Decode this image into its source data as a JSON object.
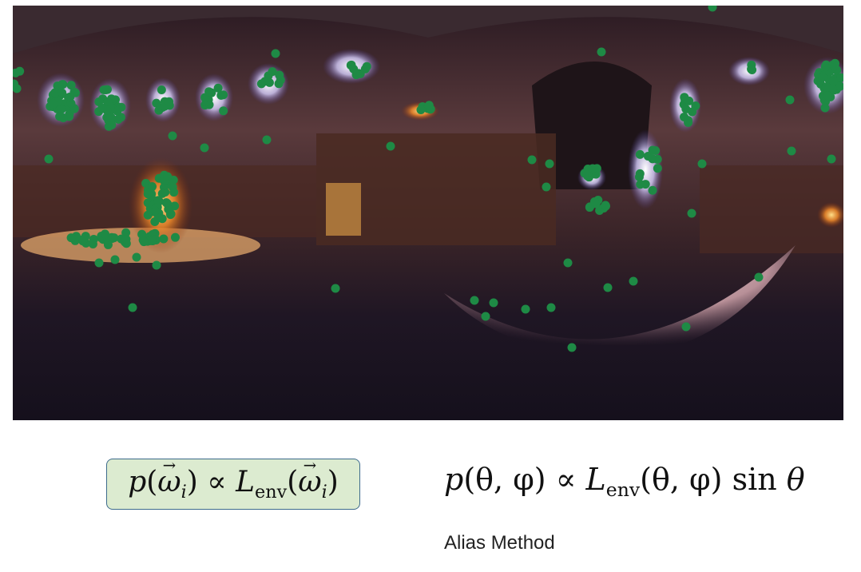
{
  "panorama": {
    "description_icon": "church-interior-environment-map",
    "sample_color": "#1e8a45"
  },
  "formulas": {
    "left": {
      "p": "p",
      "open": "(",
      "omega": "ω",
      "sub_i": "i",
      "close": ")",
      "prop": "∝",
      "L": "L",
      "env": "env"
    },
    "right": {
      "text_p": "p",
      "args": "(θ, φ)",
      "prop": "∝",
      "L": "L",
      "env": "env",
      "args2": "(θ, φ)",
      "sin": "sin",
      "theta": "θ"
    }
  },
  "labels": {
    "alias_method": "Alias Method"
  }
}
